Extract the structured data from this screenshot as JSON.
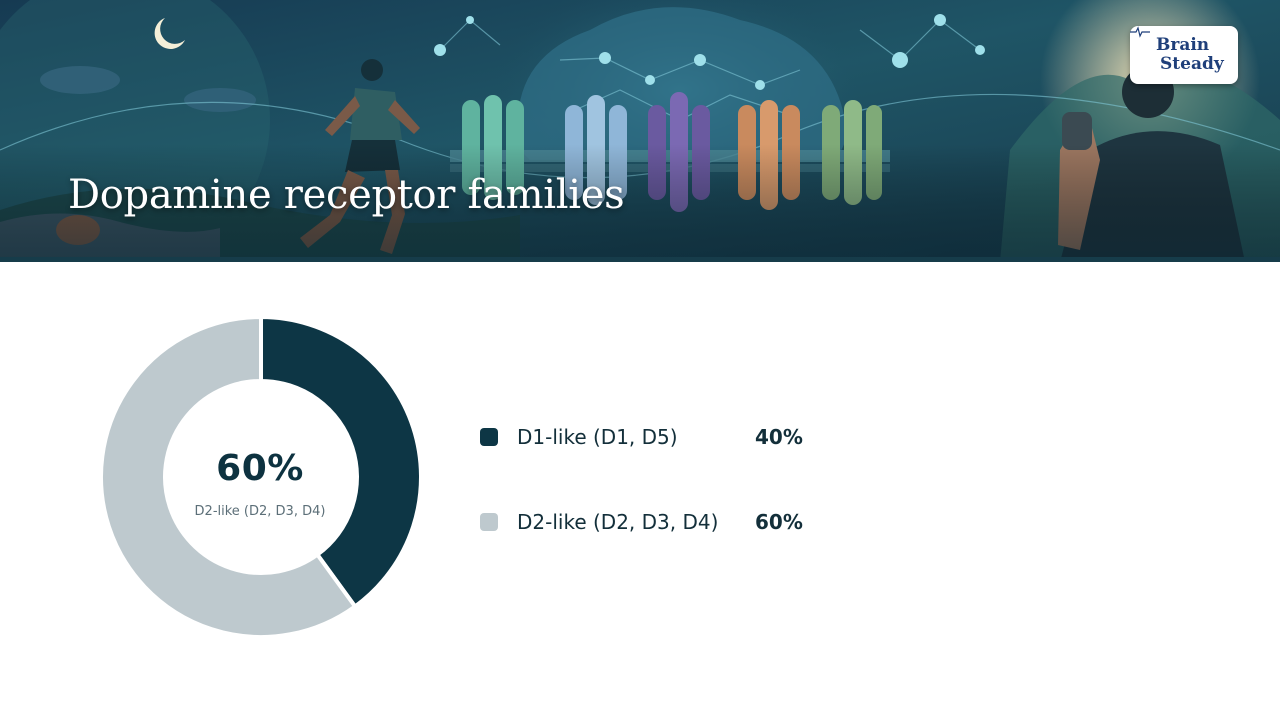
{
  "header": {
    "title": "Dopamine receptor families",
    "logo": {
      "line1": "Brain",
      "line2": "Steady"
    }
  },
  "chart_data": {
    "type": "pie",
    "variant": "donut",
    "title": "Dopamine receptor families",
    "center_value": "60%",
    "center_label": "D2-like (D2, D3, D4)",
    "slices": [
      {
        "label": "D1-like (D1, D5)",
        "value": 40,
        "display": "40%",
        "color": "#0d3645"
      },
      {
        "label": "D2-like (D2, D3, D4)",
        "value": 60,
        "display": "60%",
        "color": "#bec9ce"
      }
    ],
    "legend_position": "right"
  }
}
